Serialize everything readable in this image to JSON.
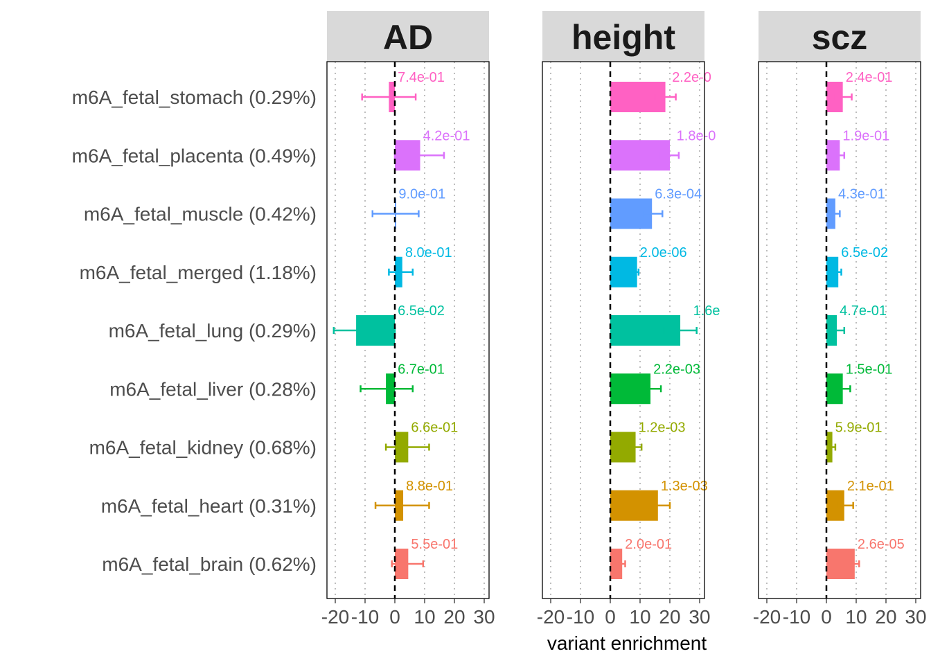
{
  "chart_data": {
    "type": "bar",
    "orientation": "horizontal",
    "xlabel": "variant enrichment",
    "ylabel": "",
    "xlim": [
      -23,
      32
    ],
    "xticks": [
      -20,
      -10,
      0,
      10,
      20,
      30
    ],
    "xtick_labels": [
      "-20",
      "-10",
      "0",
      "10",
      "20",
      "30"
    ],
    "grid": "vertical dotted",
    "reference_line": 0,
    "categories": [
      "m6A_fetal_stomach (0.29%)",
      "m6A_fetal_placenta (0.49%)",
      "m6A_fetal_muscle (0.42%)",
      "m6A_fetal_merged (1.18%)",
      "m6A_fetal_lung (0.29%)",
      "m6A_fetal_liver (0.28%)",
      "m6A_fetal_kidney (0.68%)",
      "m6A_fetal_heart (0.31%)",
      "m6A_fetal_brain (0.62%)"
    ],
    "colors": [
      "#FF61C3",
      "#DB72FB",
      "#619CFF",
      "#00B9E3",
      "#00C19F",
      "#00BA38",
      "#93AA00",
      "#D39200",
      "#F8766D"
    ],
    "panels": [
      {
        "name": "AD",
        "values": [
          -2,
          8.5,
          0.3,
          2.5,
          -13,
          -3,
          4.5,
          2.8,
          4.5
        ],
        "err_low": [
          -11,
          0,
          -7.5,
          -2,
          -20.5,
          -11.5,
          -3,
          -6.5,
          -1
        ],
        "err_high": [
          7,
          16.5,
          8,
          6,
          0,
          6,
          11.5,
          11.5,
          9.5
        ],
        "p_labels": [
          "7.4e-01",
          "4.2e-01",
          "9.0e-01",
          "8.0e-01",
          "6.5e-02",
          "6.7e-01",
          "6.6e-01",
          "8.8e-01",
          "5.5e-01"
        ]
      },
      {
        "name": "height",
        "values": [
          18.5,
          20,
          14,
          9,
          23.5,
          13.5,
          8.5,
          16,
          4
        ],
        "err_low": [
          15,
          17,
          11,
          6.5,
          18,
          10,
          6.5,
          12,
          2
        ],
        "err_high": [
          22,
          23,
          17.5,
          9.5,
          29,
          17,
          10.5,
          20,
          5
        ],
        "p_labels": [
          "2.2e-0",
          "1.8e-0",
          "6.3e-04",
          "2.0e-06",
          "1.6e",
          "2.2e-03",
          "1.2e-03",
          "1.3e-03",
          "2.0e-01"
        ]
      },
      {
        "name": "scz",
        "values": [
          5.5,
          4.5,
          3,
          4,
          3.5,
          5.5,
          2,
          6,
          9.5
        ],
        "err_low": [
          3,
          3,
          2,
          3,
          2,
          3,
          1.5,
          3.5,
          8
        ],
        "err_high": [
          8.5,
          6,
          4.5,
          5,
          6,
          8,
          3,
          9,
          11
        ],
        "p_labels": [
          "2.4e-01",
          "1.9e-01",
          "4.3e-01",
          "6.5e-02",
          "4.7e-01",
          "1.5e-01",
          "5.9e-01",
          "2.1e-01",
          "2.6e-05"
        ]
      }
    ]
  }
}
